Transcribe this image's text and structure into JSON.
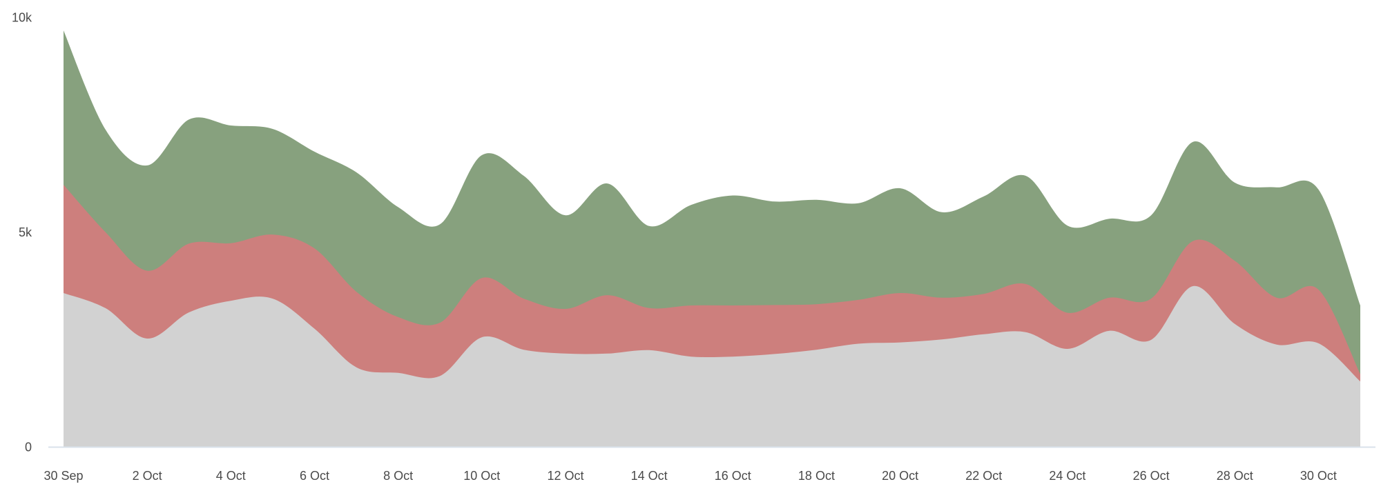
{
  "page": {
    "background": "#ffffff"
  },
  "chart_data": {
    "type": "area",
    "variant": "stacked-smoothed-areaspline",
    "title": "",
    "legend": "none",
    "grid": "none",
    "n_points": 32,
    "x_start_label": "30 Sep",
    "x_end_day_index": 31,
    "x_tick_labels": [
      "30 Sep",
      "2 Oct",
      "4 Oct",
      "6 Oct",
      "8 Oct",
      "10 Oct",
      "12 Oct",
      "14 Oct",
      "16 Oct",
      "18 Oct",
      "20 Oct",
      "22 Oct",
      "24 Oct",
      "26 Oct",
      "28 Oct",
      "30 Oct"
    ],
    "x_tick_day_indices": [
      0,
      2,
      4,
      6,
      8,
      10,
      12,
      14,
      16,
      18,
      20,
      22,
      24,
      26,
      28,
      30
    ],
    "y_axis": {
      "min": 0,
      "max": 10000,
      "tick_labels": [
        "0",
        "5k",
        "10k"
      ],
      "tick_values": [
        0,
        5000,
        10000
      ]
    },
    "label_color": "#4A4A4A",
    "axis_line_color": "#D9E2EB",
    "series": [
      {
        "name": "bottom-gray",
        "color": "#D2D2D2",
        "values": [
          3580,
          3230,
          2520,
          3130,
          3400,
          3450,
          2750,
          1850,
          1720,
          1650,
          2550,
          2260,
          2170,
          2170,
          2250,
          2100,
          2100,
          2160,
          2260,
          2400,
          2430,
          2500,
          2620,
          2670,
          2280,
          2700,
          2490,
          3740,
          2860,
          2380,
          2410,
          1520
        ]
      },
      {
        "name": "middle-red",
        "color": "#CD7F7D",
        "values": [
          2520,
          1770,
          1580,
          1600,
          1340,
          1490,
          1870,
          1760,
          1300,
          1240,
          1380,
          1190,
          1040,
          1360,
          980,
          1190,
          1190,
          1140,
          1060,
          1020,
          1150,
          970,
          940,
          1120,
          840,
          770,
          960,
          1050,
          1470,
          1090,
          1250,
          170
        ]
      },
      {
        "name": "top-green",
        "color": "#87A17E",
        "values": [
          3590,
          2390,
          2450,
          2890,
          2740,
          2460,
          2250,
          2780,
          2560,
          2290,
          2860,
          2860,
          2180,
          2600,
          1910,
          2340,
          2560,
          2410,
          2430,
          2250,
          2440,
          1990,
          2270,
          2520,
          2030,
          1840,
          1940,
          2310,
          1820,
          2570,
          2330,
          1600
        ]
      }
    ]
  }
}
